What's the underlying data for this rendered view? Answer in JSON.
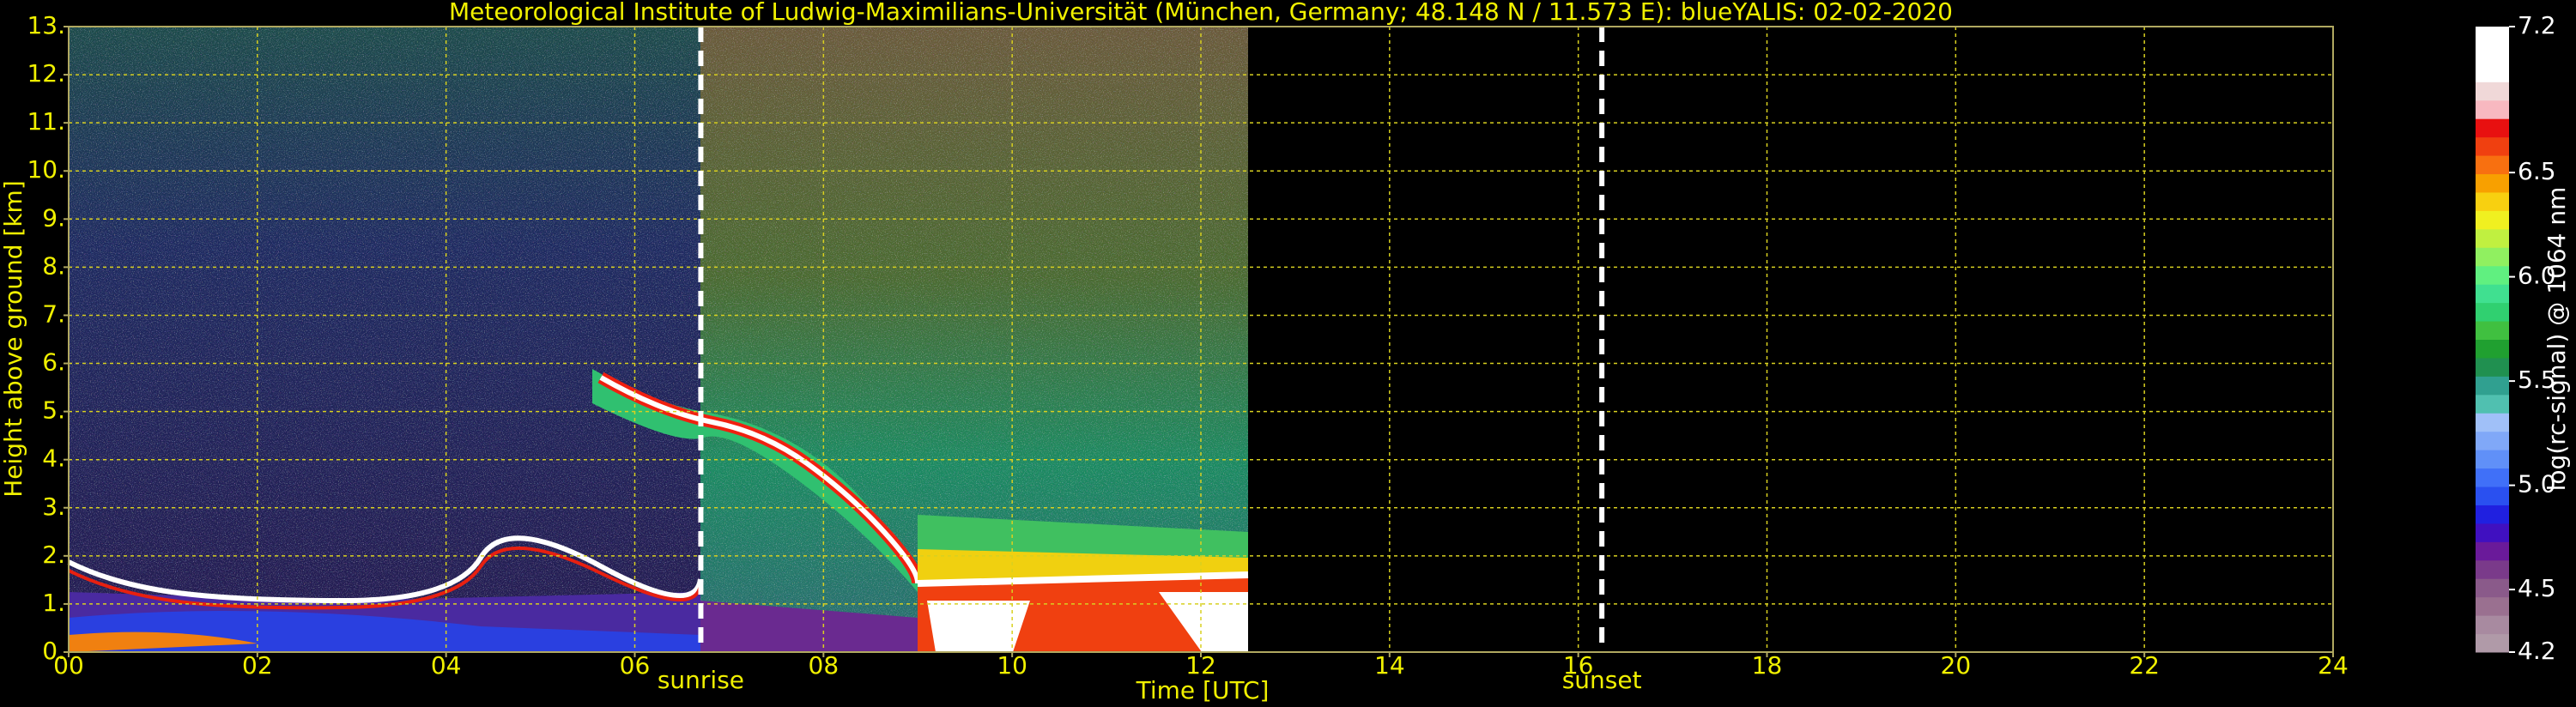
{
  "chart_data": {
    "type": "heatmap",
    "title": "Meteorological Institute of Ludwig-Maximilians-Universität (München, Germany; 48.148 N / 11.573 E):    blueYALIS: 02-02-2020",
    "x_label": "Time [UTC]",
    "y_label": "Height above ground [km]",
    "xlim": [
      0,
      24
    ],
    "xticks": [
      {
        "value": 0,
        "label": "00"
      },
      {
        "value": 2,
        "label": "02"
      },
      {
        "value": 4,
        "label": "04"
      },
      {
        "value": 6,
        "label": "06"
      },
      {
        "value": 8,
        "label": "08"
      },
      10,
      12,
      14,
      16,
      18,
      20,
      22,
      24
    ],
    "ylim": [
      0,
      13
    ],
    "yticks": [
      {
        "value": 0,
        "label": "0."
      },
      {
        "value": 1,
        "label": "1."
      },
      {
        "value": 2,
        "label": "2."
      },
      {
        "value": 3,
        "label": "3."
      },
      {
        "value": 4,
        "label": "4."
      },
      {
        "value": 5,
        "label": "5."
      },
      {
        "value": 6,
        "label": "6."
      },
      {
        "value": 7,
        "label": "7."
      },
      {
        "value": 8,
        "label": "8."
      },
      {
        "value": 9,
        "label": "9."
      },
      {
        "value": 10,
        "label": "10."
      },
      {
        "value": 11,
        "label": "11."
      },
      {
        "value": 12,
        "label": "12."
      },
      {
        "value": 13,
        "label": "13."
      }
    ],
    "grid": true,
    "annotations": [
      {
        "text": "sunrise",
        "x": 6.7
      },
      {
        "text": "sunset",
        "x": 16.25
      }
    ],
    "colorbar": {
      "label": "log(rc-signal) @ 1064 nm",
      "lim": [
        4.2,
        7.2
      ],
      "ticks": [
        4.2,
        4.5,
        {
          "value": 5,
          "label": "5.0"
        },
        5.5,
        {
          "value": 6,
          "label": "6.0"
        },
        6.5,
        7.2
      ],
      "colors": [
        "#b09aa8",
        "#a88aa0",
        "#9a7090",
        "#8a5a8a",
        "#7a3a8a",
        "#6a1a9a",
        "#4010c0",
        "#2020e0",
        "#2a50f0",
        "#4070f8",
        "#6090f8",
        "#80a8f8",
        "#a0c0f8",
        "#50c0b0",
        "#30a090",
        "#209050",
        "#20a030",
        "#40c040",
        "#30d070",
        "#40e090",
        "#60f080",
        "#90f060",
        "#c0f040",
        "#f0f020",
        "#f8d010",
        "#f8a000",
        "#f87010",
        "#f04010",
        "#e81010",
        "#f8b8c0",
        "#f0d8d8",
        "#ffffff",
        "#ffffff",
        "#ffffff"
      ]
    }
  }
}
